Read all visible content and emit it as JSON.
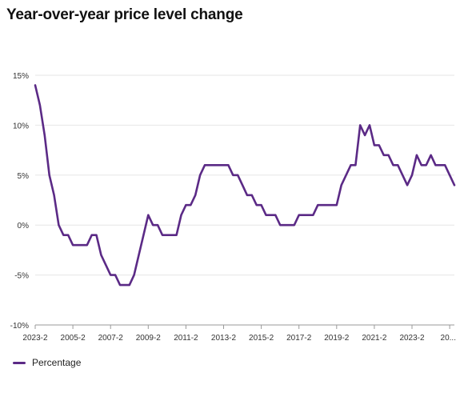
{
  "chart_data": {
    "type": "line",
    "title": "Year-over-year price level change",
    "xlabel": "",
    "ylabel": "",
    "ylim": [
      -10,
      15
    ],
    "yticks": [
      "15%",
      "10%",
      "5%",
      "0%",
      "-5%",
      "-10%"
    ],
    "ytick_values": [
      15,
      10,
      5,
      0,
      -5,
      -10
    ],
    "xtick_labels": [
      "2023-2",
      "2005-2",
      "2007-2",
      "2009-2",
      "2011-2",
      "2013-2",
      "2015-2",
      "2017-2",
      "2019-2",
      "2021-2",
      "2023-2",
      "20..."
    ],
    "grid": "horizontal",
    "legend_position": "bottom-left",
    "series": [
      {
        "name": "Percentage",
        "color": "#5b2a86",
        "values": [
          14,
          12,
          9,
          5,
          3,
          0,
          -1,
          -1,
          -2,
          -2,
          -2,
          -2,
          -1,
          -1,
          -3,
          -4,
          -5,
          -5,
          -6,
          -6,
          -6,
          -5,
          -3,
          -1,
          1,
          0,
          0,
          -1,
          -1,
          -1,
          -1,
          1,
          2,
          2,
          3,
          5,
          6,
          6,
          6,
          6,
          6,
          6,
          5,
          5,
          4,
          3,
          3,
          2,
          2,
          1,
          1,
          1,
          0,
          0,
          0,
          0,
          1,
          1,
          1,
          1,
          2,
          2,
          2,
          2,
          2,
          4,
          5,
          6,
          6,
          10,
          9,
          10,
          8,
          8,
          7,
          7,
          6,
          6,
          5,
          4,
          5,
          7,
          6,
          6,
          7,
          6,
          6,
          6,
          5,
          4
        ]
      }
    ]
  }
}
